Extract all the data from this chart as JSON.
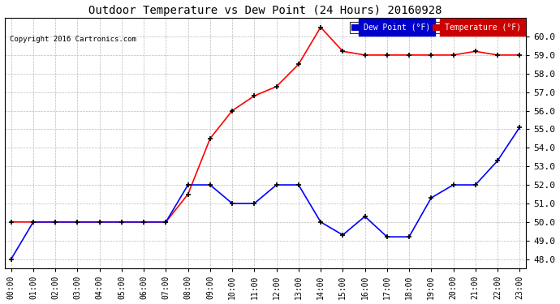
{
  "title": "Outdoor Temperature vs Dew Point (24 Hours) 20160928",
  "copyright": "Copyright 2016 Cartronics.com",
  "hours": [
    0,
    1,
    2,
    3,
    4,
    5,
    6,
    7,
    8,
    9,
    10,
    11,
    12,
    13,
    14,
    15,
    16,
    17,
    18,
    19,
    20,
    21,
    22,
    23
  ],
  "temperature": [
    50.0,
    50.0,
    50.0,
    50.0,
    50.0,
    50.0,
    50.0,
    50.0,
    51.5,
    54.5,
    56.0,
    56.8,
    57.3,
    58.5,
    60.5,
    59.2,
    59.0,
    59.0,
    59.0,
    59.0,
    59.0,
    59.2,
    59.0,
    59.0
  ],
  "dew_point": [
    48.0,
    50.0,
    50.0,
    50.0,
    50.0,
    50.0,
    50.0,
    50.0,
    52.0,
    52.0,
    51.0,
    51.0,
    52.0,
    52.0,
    50.0,
    49.3,
    50.3,
    49.2,
    49.2,
    51.3,
    52.0,
    52.0,
    53.3,
    55.1
  ],
  "ylim": [
    47.5,
    61.0
  ],
  "yticks": [
    48.0,
    49.0,
    50.0,
    51.0,
    52.0,
    53.0,
    54.0,
    55.0,
    56.0,
    57.0,
    58.0,
    59.0,
    60.0
  ],
  "temp_color": "red",
  "dew_color": "blue",
  "bg_color": "white",
  "grid_color": "#bbbbbb",
  "legend_dew_bg": "#0000cc",
  "legend_temp_bg": "#cc0000"
}
